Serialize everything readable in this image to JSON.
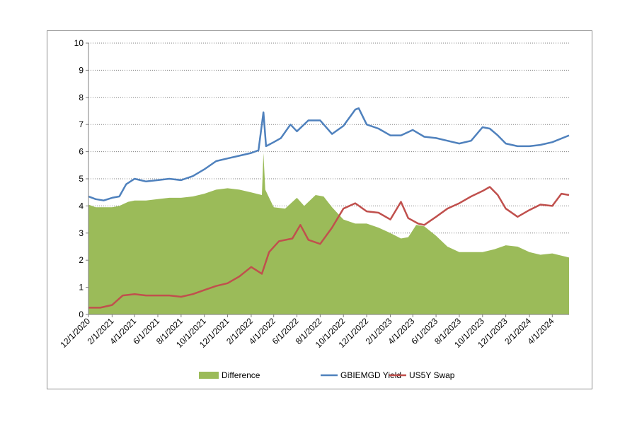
{
  "chart_data": {
    "type": "line",
    "title": "",
    "xlabel": "",
    "ylabel": "",
    "ylim": [
      0,
      10
    ],
    "yticks": [
      "0",
      "1",
      "2",
      "3",
      "4",
      "5",
      "6",
      "7",
      "8",
      "9",
      "10"
    ],
    "x_range": [
      "2020-12-01",
      "2024-05-15"
    ],
    "xtick_labels": [
      "12/1/2020",
      "2/1/2021",
      "4/1/2021",
      "6/1/2021",
      "8/1/2021",
      "10/1/2021",
      "12/1/2021",
      "2/1/2022",
      "4/1/2022",
      "6/1/2022",
      "8/1/2022",
      "10/1/2022",
      "12/1/2022",
      "2/1/2023",
      "4/1/2023",
      "6/1/2023",
      "8/1/2023",
      "10/1/2023",
      "12/1/2023",
      "2/1/2024",
      "4/1/2024"
    ],
    "grid": "horizontal dotted",
    "legend_position": "bottom",
    "series": [
      {
        "name": "Difference",
        "kind": "area",
        "color": "#9BBB59",
        "points": [
          [
            "2020-12-01",
            4.05
          ],
          [
            "2020-12-20",
            3.95
          ],
          [
            "2021-01-10",
            3.95
          ],
          [
            "2021-02-01",
            3.95
          ],
          [
            "2021-02-20",
            4.0
          ],
          [
            "2021-03-15",
            4.15
          ],
          [
            "2021-04-01",
            4.2
          ],
          [
            "2021-05-01",
            4.2
          ],
          [
            "2021-06-01",
            4.25
          ],
          [
            "2021-07-01",
            4.3
          ],
          [
            "2021-08-01",
            4.3
          ],
          [
            "2021-09-01",
            4.35
          ],
          [
            "2021-10-01",
            4.45
          ],
          [
            "2021-11-01",
            4.6
          ],
          [
            "2021-12-01",
            4.65
          ],
          [
            "2022-01-01",
            4.6
          ],
          [
            "2022-02-01",
            4.5
          ],
          [
            "2022-03-01",
            4.4
          ],
          [
            "2022-03-05",
            5.95
          ],
          [
            "2022-03-10",
            4.6
          ],
          [
            "2022-04-01",
            3.95
          ],
          [
            "2022-05-01",
            3.9
          ],
          [
            "2022-06-01",
            4.3
          ],
          [
            "2022-06-20",
            4.0
          ],
          [
            "2022-07-20",
            4.4
          ],
          [
            "2022-08-10",
            4.35
          ],
          [
            "2022-09-01",
            3.95
          ],
          [
            "2022-10-01",
            3.5
          ],
          [
            "2022-11-01",
            3.35
          ],
          [
            "2022-12-01",
            3.35
          ],
          [
            "2023-01-01",
            3.2
          ],
          [
            "2023-02-01",
            3.0
          ],
          [
            "2023-03-01",
            2.8
          ],
          [
            "2023-03-20",
            2.85
          ],
          [
            "2023-04-10",
            3.3
          ],
          [
            "2023-05-01",
            3.25
          ],
          [
            "2023-06-01",
            2.9
          ],
          [
            "2023-07-01",
            2.5
          ],
          [
            "2023-08-01",
            2.3
          ],
          [
            "2023-09-01",
            2.3
          ],
          [
            "2023-10-01",
            2.3
          ],
          [
            "2023-11-01",
            2.4
          ],
          [
            "2023-12-01",
            2.55
          ],
          [
            "2024-01-01",
            2.5
          ],
          [
            "2024-02-01",
            2.3
          ],
          [
            "2024-03-01",
            2.2
          ],
          [
            "2024-04-01",
            2.25
          ],
          [
            "2024-05-15",
            2.1
          ]
        ]
      },
      {
        "name": "GBIEMGD Yield",
        "kind": "line",
        "color": "#4F81BD",
        "points": [
          [
            "2020-12-01",
            4.35
          ],
          [
            "2020-12-20",
            4.25
          ],
          [
            "2021-01-10",
            4.2
          ],
          [
            "2021-02-01",
            4.3
          ],
          [
            "2021-02-20",
            4.35
          ],
          [
            "2021-03-10",
            4.8
          ],
          [
            "2021-04-01",
            5.0
          ],
          [
            "2021-05-01",
            4.9
          ],
          [
            "2021-06-01",
            4.95
          ],
          [
            "2021-07-01",
            5.0
          ],
          [
            "2021-08-01",
            4.95
          ],
          [
            "2021-09-01",
            5.1
          ],
          [
            "2021-10-01",
            5.35
          ],
          [
            "2021-11-01",
            5.65
          ],
          [
            "2021-12-01",
            5.75
          ],
          [
            "2022-01-01",
            5.85
          ],
          [
            "2022-02-01",
            5.95
          ],
          [
            "2022-02-20",
            6.05
          ],
          [
            "2022-03-05",
            7.45
          ],
          [
            "2022-03-12",
            6.2
          ],
          [
            "2022-04-01",
            6.35
          ],
          [
            "2022-04-20",
            6.5
          ],
          [
            "2022-05-15",
            7.0
          ],
          [
            "2022-06-01",
            6.75
          ],
          [
            "2022-07-01",
            7.15
          ],
          [
            "2022-08-01",
            7.15
          ],
          [
            "2022-09-01",
            6.65
          ],
          [
            "2022-10-01",
            6.95
          ],
          [
            "2022-11-01",
            7.55
          ],
          [
            "2022-11-10",
            7.6
          ],
          [
            "2022-12-01",
            7.0
          ],
          [
            "2023-01-01",
            6.85
          ],
          [
            "2023-02-01",
            6.6
          ],
          [
            "2023-03-01",
            6.6
          ],
          [
            "2023-04-01",
            6.8
          ],
          [
            "2023-05-01",
            6.55
          ],
          [
            "2023-06-01",
            6.5
          ],
          [
            "2023-07-01",
            6.4
          ],
          [
            "2023-08-01",
            6.3
          ],
          [
            "2023-09-01",
            6.4
          ],
          [
            "2023-10-01",
            6.9
          ],
          [
            "2023-10-20",
            6.85
          ],
          [
            "2023-11-10",
            6.6
          ],
          [
            "2023-12-01",
            6.3
          ],
          [
            "2024-01-01",
            6.2
          ],
          [
            "2024-02-01",
            6.2
          ],
          [
            "2024-03-01",
            6.25
          ],
          [
            "2024-04-01",
            6.35
          ],
          [
            "2024-05-15",
            6.6
          ]
        ]
      },
      {
        "name": "US5Y Swap",
        "kind": "line",
        "color": "#C0504D",
        "points": [
          [
            "2020-12-01",
            0.25
          ],
          [
            "2021-01-01",
            0.25
          ],
          [
            "2021-02-01",
            0.35
          ],
          [
            "2021-03-01",
            0.7
          ],
          [
            "2021-04-01",
            0.75
          ],
          [
            "2021-05-01",
            0.7
          ],
          [
            "2021-06-01",
            0.7
          ],
          [
            "2021-07-01",
            0.7
          ],
          [
            "2021-08-01",
            0.65
          ],
          [
            "2021-09-01",
            0.75
          ],
          [
            "2021-10-01",
            0.9
          ],
          [
            "2021-11-01",
            1.05
          ],
          [
            "2021-12-01",
            1.15
          ],
          [
            "2022-01-01",
            1.4
          ],
          [
            "2022-02-01",
            1.75
          ],
          [
            "2022-03-01",
            1.5
          ],
          [
            "2022-03-20",
            2.3
          ],
          [
            "2022-04-15",
            2.7
          ],
          [
            "2022-05-20",
            2.8
          ],
          [
            "2022-06-10",
            3.3
          ],
          [
            "2022-07-01",
            2.75
          ],
          [
            "2022-08-01",
            2.6
          ],
          [
            "2022-09-01",
            3.2
          ],
          [
            "2022-10-01",
            3.9
          ],
          [
            "2022-11-01",
            4.1
          ],
          [
            "2022-12-01",
            3.8
          ],
          [
            "2023-01-01",
            3.75
          ],
          [
            "2023-02-01",
            3.5
          ],
          [
            "2023-03-01",
            4.15
          ],
          [
            "2023-03-20",
            3.55
          ],
          [
            "2023-04-15",
            3.35
          ],
          [
            "2023-05-01",
            3.3
          ],
          [
            "2023-06-01",
            3.6
          ],
          [
            "2023-07-01",
            3.9
          ],
          [
            "2023-08-01",
            4.1
          ],
          [
            "2023-09-01",
            4.35
          ],
          [
            "2023-10-01",
            4.55
          ],
          [
            "2023-10-20",
            4.7
          ],
          [
            "2023-11-10",
            4.4
          ],
          [
            "2023-12-01",
            3.9
          ],
          [
            "2024-01-01",
            3.6
          ],
          [
            "2024-02-01",
            3.85
          ],
          [
            "2024-03-01",
            4.05
          ],
          [
            "2024-04-01",
            4.0
          ],
          [
            "2024-04-25",
            4.45
          ],
          [
            "2024-05-15",
            4.4
          ]
        ]
      }
    ]
  }
}
